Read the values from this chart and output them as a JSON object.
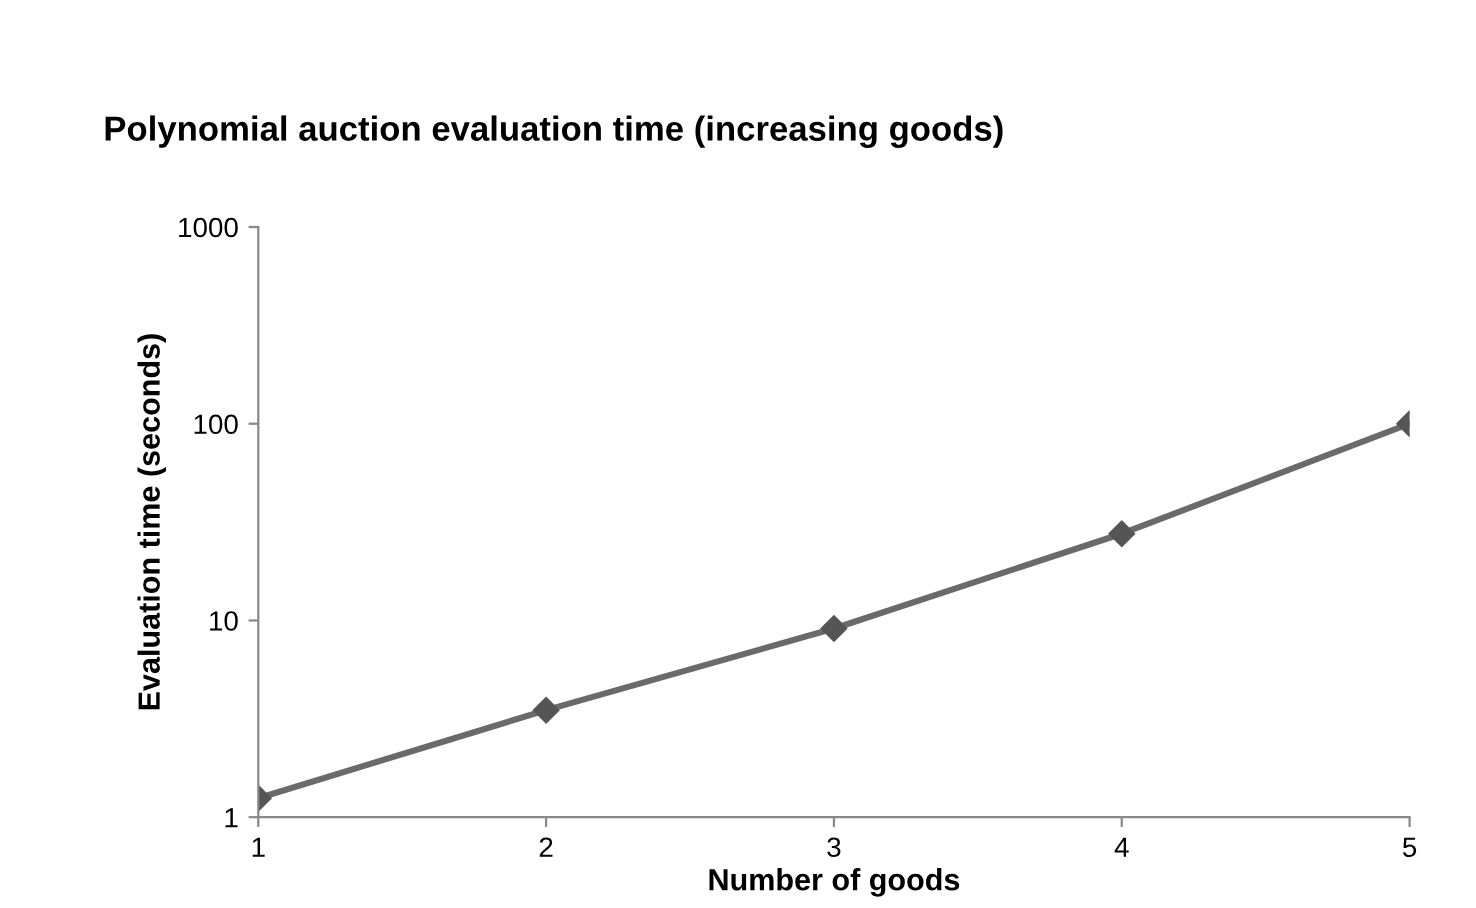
{
  "chart_data": {
    "type": "line",
    "title": "Polynomial auction evaluation time (increasing goods)",
    "xlabel": "Number of goods",
    "ylabel": "Evaluation time (seconds)",
    "x": [
      1,
      2,
      3,
      4,
      5
    ],
    "series": [
      {
        "color": "#6a6a6a",
        "values": [
          1.25,
          3.5,
          9.1,
          27.6,
          100
        ]
      }
    ],
    "log": "y",
    "xlim": [
      1,
      5
    ],
    "xticks": [
      1,
      2,
      3,
      4,
      5
    ],
    "ylim": [
      1,
      1000
    ],
    "yticks": [
      1,
      10,
      100,
      1000
    ],
    "grid": false,
    "legend": false,
    "marker": "diamond",
    "line_style": "solid"
  }
}
